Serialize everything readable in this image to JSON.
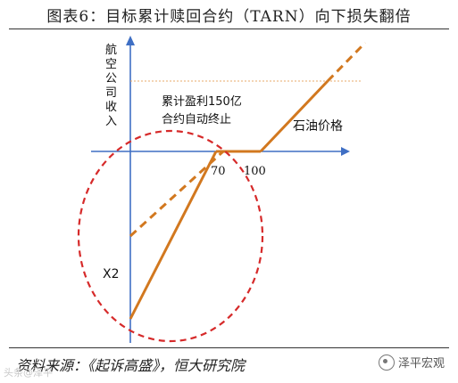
{
  "title": "图表6：目标累计赎回合约（TARN）向下损失翻倍",
  "y_axis_label": "航空公司收入",
  "x_axis_label": "石油价格",
  "annotation": [
    "累计盈利150亿",
    "合约自动终止"
  ],
  "tick_70": "70",
  "tick_100": "100",
  "label_x2": "X2",
  "source": "资料来源：《起诉高盛》，恒大研究院",
  "watermark_left": "头条@泽平",
  "watermark_right": "泽平宏观",
  "colors": {
    "axis": "#3f6fc4",
    "payoff": "#d2781f",
    "circle": "#d62a2a",
    "cap": "#e8a86a"
  }
}
